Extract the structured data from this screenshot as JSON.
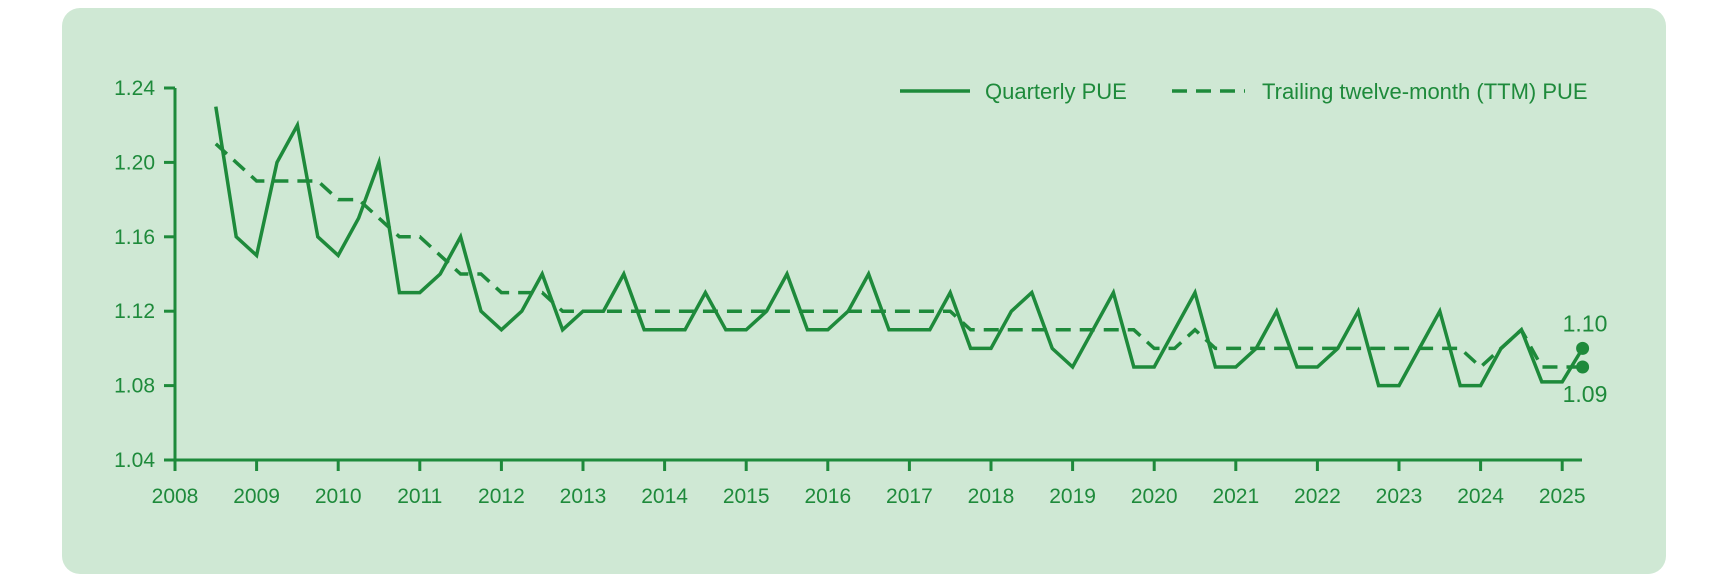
{
  "colors": {
    "background": "#cfe8d4",
    "line": "#1e8a3b"
  },
  "chart_data": {
    "type": "line",
    "title": "",
    "xlabel": "",
    "ylabel": "",
    "xlim": [
      2008,
      2025.3
    ],
    "ylim": [
      1.04,
      1.24
    ],
    "x_ticks": [
      "2008",
      "2009",
      "2010",
      "2011",
      "2012",
      "2013",
      "2014",
      "2015",
      "2016",
      "2017",
      "2018",
      "2019",
      "2020",
      "2021",
      "2022",
      "2023",
      "2024",
      "2025"
    ],
    "y_ticks": [
      "1.04",
      "1.08",
      "1.12",
      "1.16",
      "1.20",
      "1.24"
    ],
    "grid": false,
    "legend": "top-right",
    "series": [
      {
        "name": "Quarterly PUE",
        "style": "solid",
        "x": [
          2008.5,
          2008.75,
          2009,
          2009.25,
          2009.5,
          2009.75,
          2010,
          2010.25,
          2010.5,
          2010.75,
          2011,
          2011.25,
          2011.5,
          2011.75,
          2012,
          2012.25,
          2012.5,
          2012.75,
          2013,
          2013.25,
          2013.5,
          2013.75,
          2014,
          2014.25,
          2014.5,
          2014.75,
          2015,
          2015.25,
          2015.5,
          2015.75,
          2016,
          2016.25,
          2016.5,
          2016.75,
          2017,
          2017.25,
          2017.5,
          2017.75,
          2018,
          2018.25,
          2018.5,
          2018.75,
          2019,
          2019.25,
          2019.5,
          2019.75,
          2020,
          2020.25,
          2020.5,
          2020.75,
          2021,
          2021.25,
          2021.5,
          2021.75,
          2022,
          2022.25,
          2022.5,
          2022.75,
          2023,
          2023.25,
          2023.5,
          2023.75,
          2024,
          2024.25,
          2024.5,
          2024.75,
          2025,
          2025.25
        ],
        "values": [
          1.23,
          1.16,
          1.15,
          1.2,
          1.22,
          1.16,
          1.15,
          1.17,
          1.2,
          1.13,
          1.13,
          1.14,
          1.16,
          1.12,
          1.11,
          1.12,
          1.14,
          1.11,
          1.12,
          1.12,
          1.14,
          1.11,
          1.11,
          1.11,
          1.13,
          1.11,
          1.11,
          1.12,
          1.14,
          1.11,
          1.11,
          1.12,
          1.14,
          1.11,
          1.11,
          1.11,
          1.13,
          1.1,
          1.1,
          1.12,
          1.13,
          1.1,
          1.09,
          1.11,
          1.13,
          1.09,
          1.09,
          1.11,
          1.13,
          1.09,
          1.09,
          1.1,
          1.12,
          1.09,
          1.09,
          1.1,
          1.12,
          1.08,
          1.08,
          1.1,
          1.12,
          1.08,
          1.08,
          1.1,
          1.11,
          1.082,
          1.082,
          1.1
        ]
      },
      {
        "name": "Trailing twelve-month (TTM) PUE",
        "style": "dashed",
        "x": [
          2008.5,
          2008.75,
          2009,
          2009.25,
          2009.5,
          2009.75,
          2010,
          2010.25,
          2010.5,
          2010.75,
          2011,
          2011.25,
          2011.5,
          2011.75,
          2012,
          2012.25,
          2012.5,
          2012.75,
          2013,
          2013.25,
          2013.5,
          2013.75,
          2014,
          2014.25,
          2014.5,
          2014.75,
          2015,
          2015.25,
          2015.5,
          2015.75,
          2016,
          2016.25,
          2016.5,
          2016.75,
          2017,
          2017.25,
          2017.5,
          2017.75,
          2018,
          2018.25,
          2018.5,
          2018.75,
          2019,
          2019.25,
          2019.5,
          2019.75,
          2020,
          2020.25,
          2020.5,
          2020.75,
          2021,
          2021.25,
          2021.5,
          2021.75,
          2022,
          2022.25,
          2022.5,
          2022.75,
          2023,
          2023.25,
          2023.5,
          2023.75,
          2024,
          2024.25,
          2024.5,
          2024.75,
          2025,
          2025.25
        ],
        "values": [
          1.21,
          1.2,
          1.19,
          1.19,
          1.19,
          1.19,
          1.18,
          1.18,
          1.17,
          1.16,
          1.16,
          1.15,
          1.14,
          1.14,
          1.13,
          1.13,
          1.13,
          1.12,
          1.12,
          1.12,
          1.12,
          1.12,
          1.12,
          1.12,
          1.12,
          1.12,
          1.12,
          1.12,
          1.12,
          1.12,
          1.12,
          1.12,
          1.12,
          1.12,
          1.12,
          1.12,
          1.12,
          1.11,
          1.11,
          1.11,
          1.11,
          1.11,
          1.11,
          1.11,
          1.11,
          1.11,
          1.1,
          1.1,
          1.11,
          1.1,
          1.1,
          1.1,
          1.1,
          1.1,
          1.1,
          1.1,
          1.1,
          1.1,
          1.1,
          1.1,
          1.1,
          1.1,
          1.09,
          1.1,
          1.11,
          1.09,
          1.09,
          1.09
        ]
      }
    ],
    "annotations": [
      {
        "text": "1.10",
        "x": 2025.25,
        "y": 1.1,
        "series": "Quarterly PUE"
      },
      {
        "text": "1.09",
        "x": 2025.25,
        "y": 1.09,
        "series": "Trailing twelve-month (TTM) PUE"
      }
    ]
  }
}
